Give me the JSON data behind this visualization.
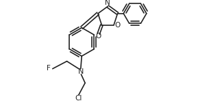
{
  "bg_color": "#ffffff",
  "line_color": "#222222",
  "line_width": 1.2,
  "font_size": 7.0,
  "figsize": [
    3.05,
    1.48
  ],
  "dpi": 100,
  "xlim": [
    0,
    10.5
  ],
  "ylim": [
    0,
    4.9
  ]
}
